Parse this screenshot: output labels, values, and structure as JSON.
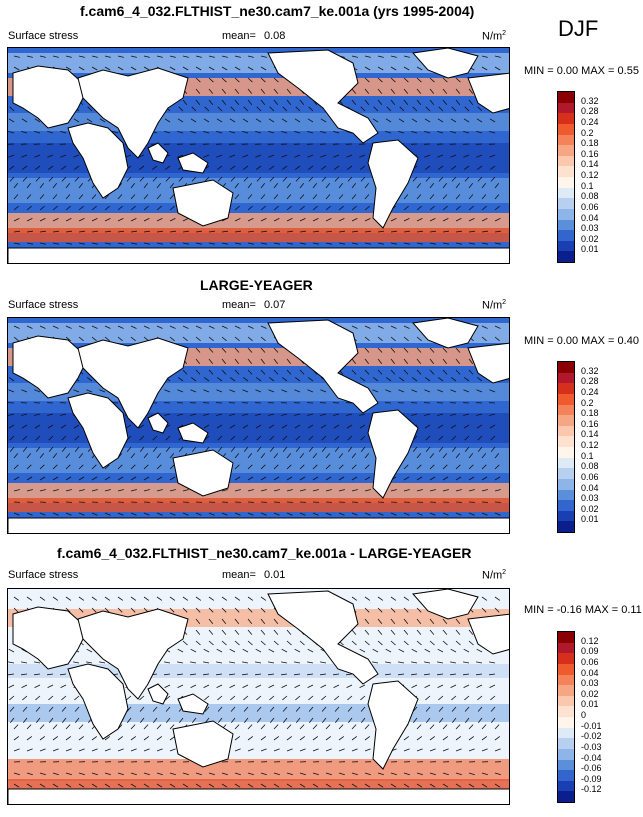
{
  "season": "DJF",
  "panels": [
    {
      "title": "f.cam6_4_032.FLTHIST_ne30.cam7_ke.001a (yrs 1995-2004)",
      "variable": "Surface stress",
      "mean_label": "mean=",
      "mean_value": "0.08",
      "units": "N/m",
      "units_sup": "2",
      "minmax": "MIN =  0.00 MAX =  0.55",
      "colorbar": {
        "labels": [
          "0.32",
          "0.28",
          "0.24",
          "0.2",
          "0.18",
          "0.16",
          "0.14",
          "0.12",
          "0.1",
          "0.08",
          "0.06",
          "0.04",
          "0.03",
          "0.02",
          "0.01"
        ],
        "colors": [
          "#8b0000",
          "#b2182b",
          "#d6301d",
          "#ef5a2f",
          "#f4825a",
          "#f7a684",
          "#fbc8ae",
          "#fde2cf",
          "#fff5eb",
          "#deebf7",
          "#b7d0ef",
          "#8eb5e8",
          "#5b8fd9",
          "#3366cc",
          "#1a3fb3",
          "#0a1f8c"
        ]
      }
    },
    {
      "title": "LARGE-YEAGER",
      "variable": "Surface stress",
      "mean_label": "mean=",
      "mean_value": "0.07",
      "units": "N/m",
      "units_sup": "2",
      "minmax": "MIN =  0.00 MAX =  0.40",
      "colorbar": {
        "labels": [
          "0.32",
          "0.28",
          "0.24",
          "0.2",
          "0.18",
          "0.16",
          "0.14",
          "0.12",
          "0.1",
          "0.08",
          "0.06",
          "0.04",
          "0.03",
          "0.02",
          "0.01"
        ],
        "colors": [
          "#8b0000",
          "#b2182b",
          "#d6301d",
          "#ef5a2f",
          "#f4825a",
          "#f7a684",
          "#fbc8ae",
          "#fde2cf",
          "#fff5eb",
          "#deebf7",
          "#b7d0ef",
          "#8eb5e8",
          "#5b8fd9",
          "#3366cc",
          "#1a3fb3",
          "#0a1f8c"
        ]
      }
    },
    {
      "title": "f.cam6_4_032.FLTHIST_ne30.cam7_ke.001a - LARGE-YEAGER",
      "variable": "Surface stress",
      "mean_label": "mean=",
      "mean_value": "0.01",
      "units": "N/m",
      "units_sup": "2",
      "minmax": "MIN = -0.16 MAX =  0.11",
      "colorbar": {
        "labels": [
          "0.12",
          "0.09",
          "0.06",
          "0.04",
          "0.03",
          "0.02",
          "0.01",
          "0",
          "-0.01",
          "-0.02",
          "-0.03",
          "-0.04",
          "-0.06",
          "-0.09",
          "-0.12"
        ],
        "colors": [
          "#8b0000",
          "#b2182b",
          "#d6301d",
          "#ef5a2f",
          "#f4825a",
          "#f7a684",
          "#fbc8ae",
          "#fde2cf",
          "#fff5eb",
          "#deebf7",
          "#b7d0ef",
          "#8eb5e8",
          "#5b8fd9",
          "#3366cc",
          "#1a3fb3",
          "#0a1f8c"
        ]
      }
    }
  ]
}
